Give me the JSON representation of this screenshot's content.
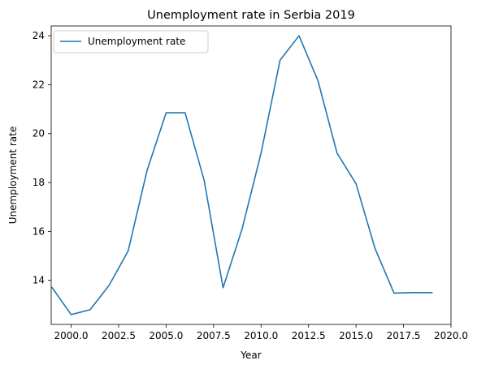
{
  "chart_data": {
    "type": "line",
    "title": "Unemployment rate in Serbia 2019",
    "xlabel": "Year",
    "ylabel": "Unemployment rate",
    "xlim": [
      1998.95,
      2020.0
    ],
    "ylim": [
      12.2,
      24.4
    ],
    "x_ticks": [
      2000.0,
      2002.5,
      2005.0,
      2007.5,
      2010.0,
      2012.5,
      2015.0,
      2017.5,
      2020.0
    ],
    "x_tick_labels": [
      "2000.0",
      "2002.5",
      "2005.0",
      "2007.5",
      "2010.0",
      "2012.5",
      "2015.0",
      "2017.5",
      "2020.0"
    ],
    "y_ticks": [
      14,
      16,
      18,
      20,
      22,
      24
    ],
    "y_tick_labels": [
      "14",
      "16",
      "18",
      "20",
      "22",
      "24"
    ],
    "grid": false,
    "legend": {
      "position": "upper-left"
    },
    "series": [
      {
        "name": "Unemployment rate",
        "color": "#1f77b4",
        "x": [
          1999,
          2000,
          2001,
          2002,
          2003,
          2004,
          2005,
          2006,
          2007,
          2008,
          2009,
          2010,
          2011,
          2012,
          2013,
          2014,
          2015,
          2016,
          2017,
          2018,
          2019
        ],
        "y": [
          13.7,
          12.6,
          12.8,
          13.8,
          15.2,
          18.5,
          20.85,
          20.85,
          18.1,
          13.7,
          16.1,
          19.2,
          23.0,
          24.0,
          22.15,
          19.2,
          17.95,
          15.3,
          13.48,
          13.5,
          13.5
        ]
      }
    ]
  }
}
